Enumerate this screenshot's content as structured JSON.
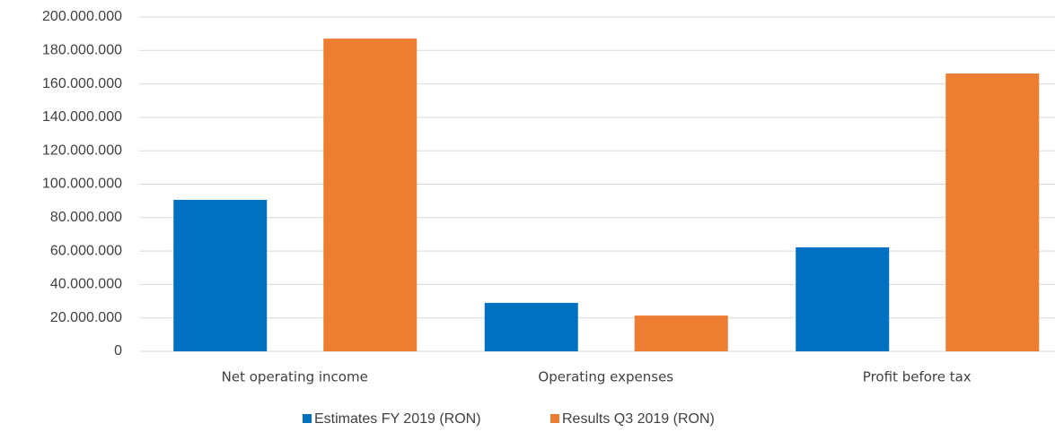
{
  "chart_data": {
    "type": "bar",
    "categories": [
      "Net operating income",
      "Operating expenses",
      "Profit before tax"
    ],
    "series": [
      {
        "name": "Estimates FY 2019 (RON)",
        "color": "#0070c0",
        "values": [
          90600000,
          29000000,
          62200000
        ]
      },
      {
        "name": "Results Q3 2019 (RON)",
        "color": "#ed7d31",
        "values": [
          187100000,
          21400000,
          166200000
        ]
      }
    ],
    "ylim": [
      0,
      200000000
    ],
    "yticks": [
      0,
      {
        "value": 20000000,
        "label": "20.000.000"
      },
      {
        "value": 40000000,
        "label": "40.000.000"
      },
      {
        "value": 60000000,
        "label": "60.000.000"
      },
      {
        "value": 80000000,
        "label": "80.000.000"
      },
      {
        "value": 100000000,
        "label": "100.000.000"
      },
      {
        "value": 120000000,
        "label": "120.000.000"
      },
      {
        "value": 140000000,
        "label": "140.000.000"
      },
      {
        "value": 160000000,
        "label": "160.000.000"
      },
      {
        "value": 180000000,
        "label": "180.000.000"
      },
      {
        "value": 200000000,
        "label": "200.000.000"
      }
    ],
    "grid": true,
    "legend": "bottom"
  }
}
